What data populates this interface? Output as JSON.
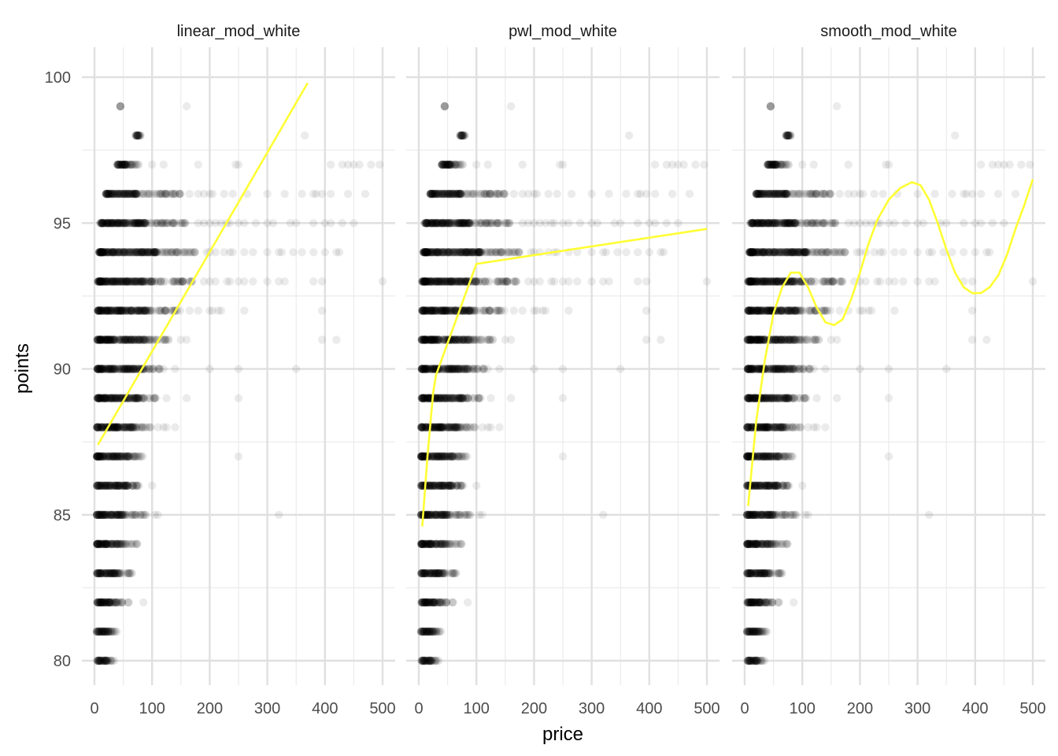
{
  "chart_data": {
    "type": "scatter",
    "facets": [
      "linear_mod_white",
      "pwl_mod_white",
      "smooth_mod_white"
    ],
    "xlabel": "price",
    "ylabel": "points",
    "xlim": [
      0,
      500
    ],
    "ylim": [
      80,
      100
    ],
    "x_ticks": [
      0,
      100,
      200,
      300,
      400,
      500
    ],
    "y_ticks": [
      80,
      85,
      90,
      95,
      100
    ],
    "grid": true,
    "point_color": "#000000",
    "point_alpha": 0.08,
    "fit_color": "#ffff33",
    "point_bands": [
      {
        "y": 80,
        "xmin": 4,
        "xmax": 25,
        "xmax_sparse": 35
      },
      {
        "y": 81,
        "xmin": 4,
        "xmax": 30,
        "xmax_sparse": 40
      },
      {
        "y": 82,
        "xmin": 4,
        "xmax": 40,
        "xmax_sparse": 60,
        "extra": [
          85
        ]
      },
      {
        "y": 83,
        "xmin": 4,
        "xmax": 45,
        "xmax_sparse": 65
      },
      {
        "y": 84,
        "xmin": 4,
        "xmax": 50,
        "xmax_sparse": 75
      },
      {
        "y": 85,
        "xmin": 4,
        "xmax": 55,
        "xmax_sparse": 90,
        "extra": [
          105,
          110,
          320
        ]
      },
      {
        "y": 86,
        "xmin": 4,
        "xmax": 60,
        "xmax_sparse": 85,
        "extra": [
          100
        ]
      },
      {
        "y": 87,
        "xmin": 4,
        "xmax": 65,
        "xmax_sparse": 90,
        "extra": [
          250
        ]
      },
      {
        "y": 88,
        "xmin": 4,
        "xmax": 70,
        "xmax_sparse": 100,
        "extra": [
          110,
          120,
          125,
          140
        ]
      },
      {
        "y": 89,
        "xmin": 5,
        "xmax": 80,
        "xmax_sparse": 110,
        "extra": [
          125,
          160,
          250
        ]
      },
      {
        "y": 90,
        "xmin": 5,
        "xmax": 85,
        "xmax_sparse": 120,
        "extra": [
          140,
          200,
          250,
          350
        ]
      },
      {
        "y": 91,
        "xmin": 5,
        "xmax": 90,
        "xmax_sparse": 130,
        "extra": [
          150,
          160,
          395,
          420
        ]
      },
      {
        "y": 92,
        "xmin": 6,
        "xmax": 95,
        "xmax_sparse": 150,
        "extra": [
          165,
          180,
          200,
          205,
          215,
          220,
          260,
          395
        ]
      },
      {
        "y": 93,
        "xmin": 6,
        "xmax": 100,
        "xmax_sparse": 170,
        "extra": [
          190,
          200,
          210,
          230,
          235,
          250,
          260,
          275,
          300,
          320,
          330,
          380,
          395,
          500
        ]
      },
      {
        "y": 94,
        "xmin": 8,
        "xmax": 110,
        "xmax_sparse": 175,
        "extra": [
          195,
          200,
          210,
          225,
          235,
          240,
          260,
          275,
          300,
          320,
          325,
          345,
          360,
          380,
          400,
          420,
          425
        ]
      },
      {
        "y": 95,
        "xmin": 10,
        "xmax": 90,
        "xmax_sparse": 160,
        "extra": [
          180,
          190,
          200,
          210,
          220,
          230,
          235,
          250,
          260,
          280,
          300,
          310,
          340,
          350,
          380,
          400,
          410,
          430,
          450
        ]
      },
      {
        "y": 96,
        "xmin": 20,
        "xmax": 75,
        "xmax_sparse": 150,
        "extra": [
          165,
          180,
          190,
          200,
          205,
          225,
          240,
          265,
          300,
          330,
          360,
          380,
          385,
          395,
          410,
          440,
          470
        ]
      },
      {
        "y": 97,
        "xmin": 40,
        "xmax": 65,
        "xmax_sparse": 80,
        "extra": [
          100,
          120,
          180,
          245,
          250,
          410,
          430,
          440,
          450,
          460,
          480,
          495
        ]
      },
      {
        "y": 98,
        "xmin": 72,
        "xmax": 80,
        "xmax_sparse": 80,
        "extra": [
          365
        ]
      },
      {
        "y": 99,
        "xmin": 45,
        "xmax": 45,
        "xmax_sparse": 45,
        "extra": [
          160
        ]
      }
    ],
    "series": [
      {
        "name": "linear_mod_white",
        "fit": [
          [
            6,
            87.4
          ],
          [
            370,
            99.8
          ]
        ]
      },
      {
        "name": "pwl_mod_white",
        "fit": [
          [
            6,
            84.6
          ],
          [
            15,
            87.0
          ],
          [
            25,
            89.2
          ],
          [
            30,
            89.8
          ],
          [
            100,
            93.6
          ],
          [
            500,
            94.8
          ]
        ]
      },
      {
        "name": "smooth_mod_white",
        "fit": [
          [
            6,
            85.3
          ],
          [
            20,
            88.2
          ],
          [
            35,
            90.3
          ],
          [
            50,
            91.9
          ],
          [
            65,
            92.8
          ],
          [
            80,
            93.3
          ],
          [
            95,
            93.3
          ],
          [
            110,
            92.8
          ],
          [
            125,
            92.1
          ],
          [
            140,
            91.6
          ],
          [
            155,
            91.5
          ],
          [
            170,
            91.7
          ],
          [
            185,
            92.4
          ],
          [
            200,
            93.3
          ],
          [
            215,
            94.3
          ],
          [
            230,
            95.1
          ],
          [
            250,
            95.8
          ],
          [
            270,
            96.2
          ],
          [
            290,
            96.4
          ],
          [
            305,
            96.3
          ],
          [
            320,
            95.8
          ],
          [
            335,
            95.0
          ],
          [
            350,
            94.1
          ],
          [
            365,
            93.3
          ],
          [
            380,
            92.8
          ],
          [
            395,
            92.6
          ],
          [
            410,
            92.6
          ],
          [
            425,
            92.8
          ],
          [
            440,
            93.2
          ],
          [
            455,
            93.9
          ],
          [
            470,
            94.8
          ],
          [
            485,
            95.6
          ],
          [
            500,
            96.5
          ]
        ]
      }
    ]
  }
}
